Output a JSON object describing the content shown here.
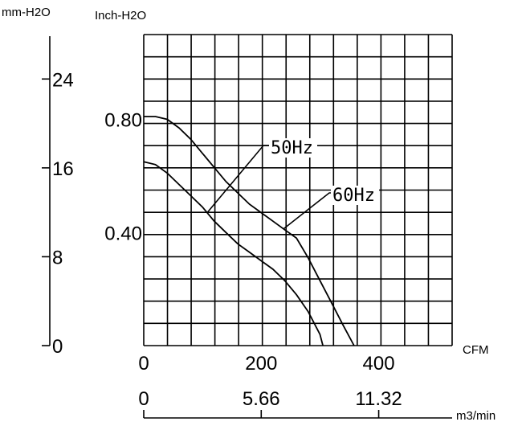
{
  "chart_data": {
    "type": "line",
    "units": {
      "left_outer": "mm-H2O",
      "left_inner": "Inch-H2O",
      "bottom_inner": "CFM",
      "bottom_outer": "m3/min"
    },
    "axes": {
      "mm": {
        "ticks": [
          "0",
          "8",
          "16",
          "24"
        ],
        "range": [
          0,
          28
        ]
      },
      "inch": {
        "ticks": [
          "0.40",
          "0.80"
        ],
        "range": [
          0,
          1.1
        ]
      },
      "cfm": {
        "ticks": [
          "0",
          "200",
          "400"
        ],
        "range": [
          0,
          525
        ]
      },
      "m3min": {
        "ticks": [
          "0",
          "5.66",
          "11.32"
        ]
      }
    },
    "grid": true,
    "series": [
      {
        "name": "50Hz",
        "x": [
          0,
          20,
          40,
          60,
          80,
          100,
          120,
          140,
          160,
          180,
          200,
          220,
          240,
          260,
          280,
          300,
          305
        ],
        "y": [
          0.65,
          0.64,
          0.61,
          0.57,
          0.53,
          0.49,
          0.44,
          0.4,
          0.36,
          0.33,
          0.3,
          0.27,
          0.23,
          0.18,
          0.12,
          0.04,
          0
        ]
      },
      {
        "name": "60Hz",
        "x": [
          0,
          20,
          40,
          60,
          80,
          100,
          120,
          140,
          160,
          180,
          200,
          220,
          240,
          260,
          280,
          300,
          320,
          340,
          358
        ],
        "y": [
          0.81,
          0.81,
          0.8,
          0.77,
          0.73,
          0.68,
          0.63,
          0.58,
          0.54,
          0.5,
          0.47,
          0.44,
          0.41,
          0.38,
          0.31,
          0.23,
          0.15,
          0.07,
          0
        ]
      }
    ],
    "callouts": [
      {
        "label": "50Hz",
        "series": "50Hz"
      },
      {
        "label": "60Hz",
        "series": "60Hz"
      }
    ]
  }
}
